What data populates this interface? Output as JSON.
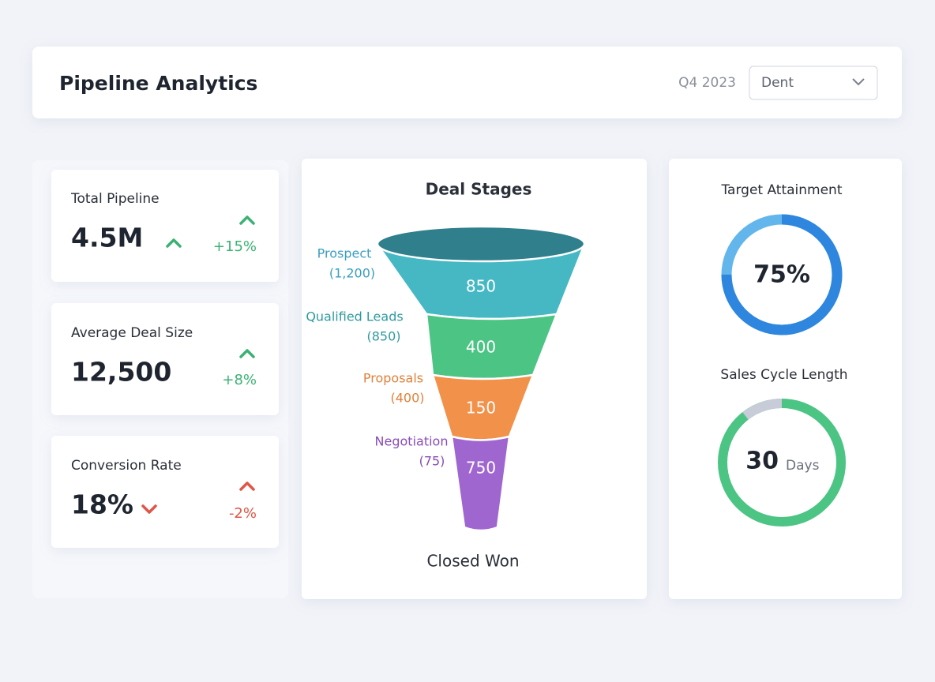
{
  "header": {
    "title": "Pipeline Analytics",
    "period": "Q4 2023",
    "dropdown": "Dent"
  },
  "kpis": [
    {
      "label": "Total Pipeline",
      "value": "4.5M",
      "change": "+15%"
    },
    {
      "label": "Average Deal Size",
      "value": "12,500",
      "change": "+8%"
    },
    {
      "label": "Conversion Rate",
      "value": "18%",
      "change": "-2%"
    }
  ],
  "funnel": {
    "title": "Deal Stages",
    "stages": [
      {
        "name": "Prospect",
        "count": "(1,200)",
        "value": "850"
      },
      {
        "name": "Qualified Leads",
        "count": "(850)",
        "value": "400"
      },
      {
        "name": "Proposals",
        "count": "(400)",
        "value": "150"
      },
      {
        "name": "Negotiation",
        "count": "(75)",
        "value": "750"
      }
    ],
    "footer": "Closed Won"
  },
  "gauges": [
    {
      "title": "Target Attainment",
      "value": 75,
      "label": "75%"
    },
    {
      "title": "Sales Cycle Length",
      "value": "30",
      "unit": "Days"
    }
  ]
}
